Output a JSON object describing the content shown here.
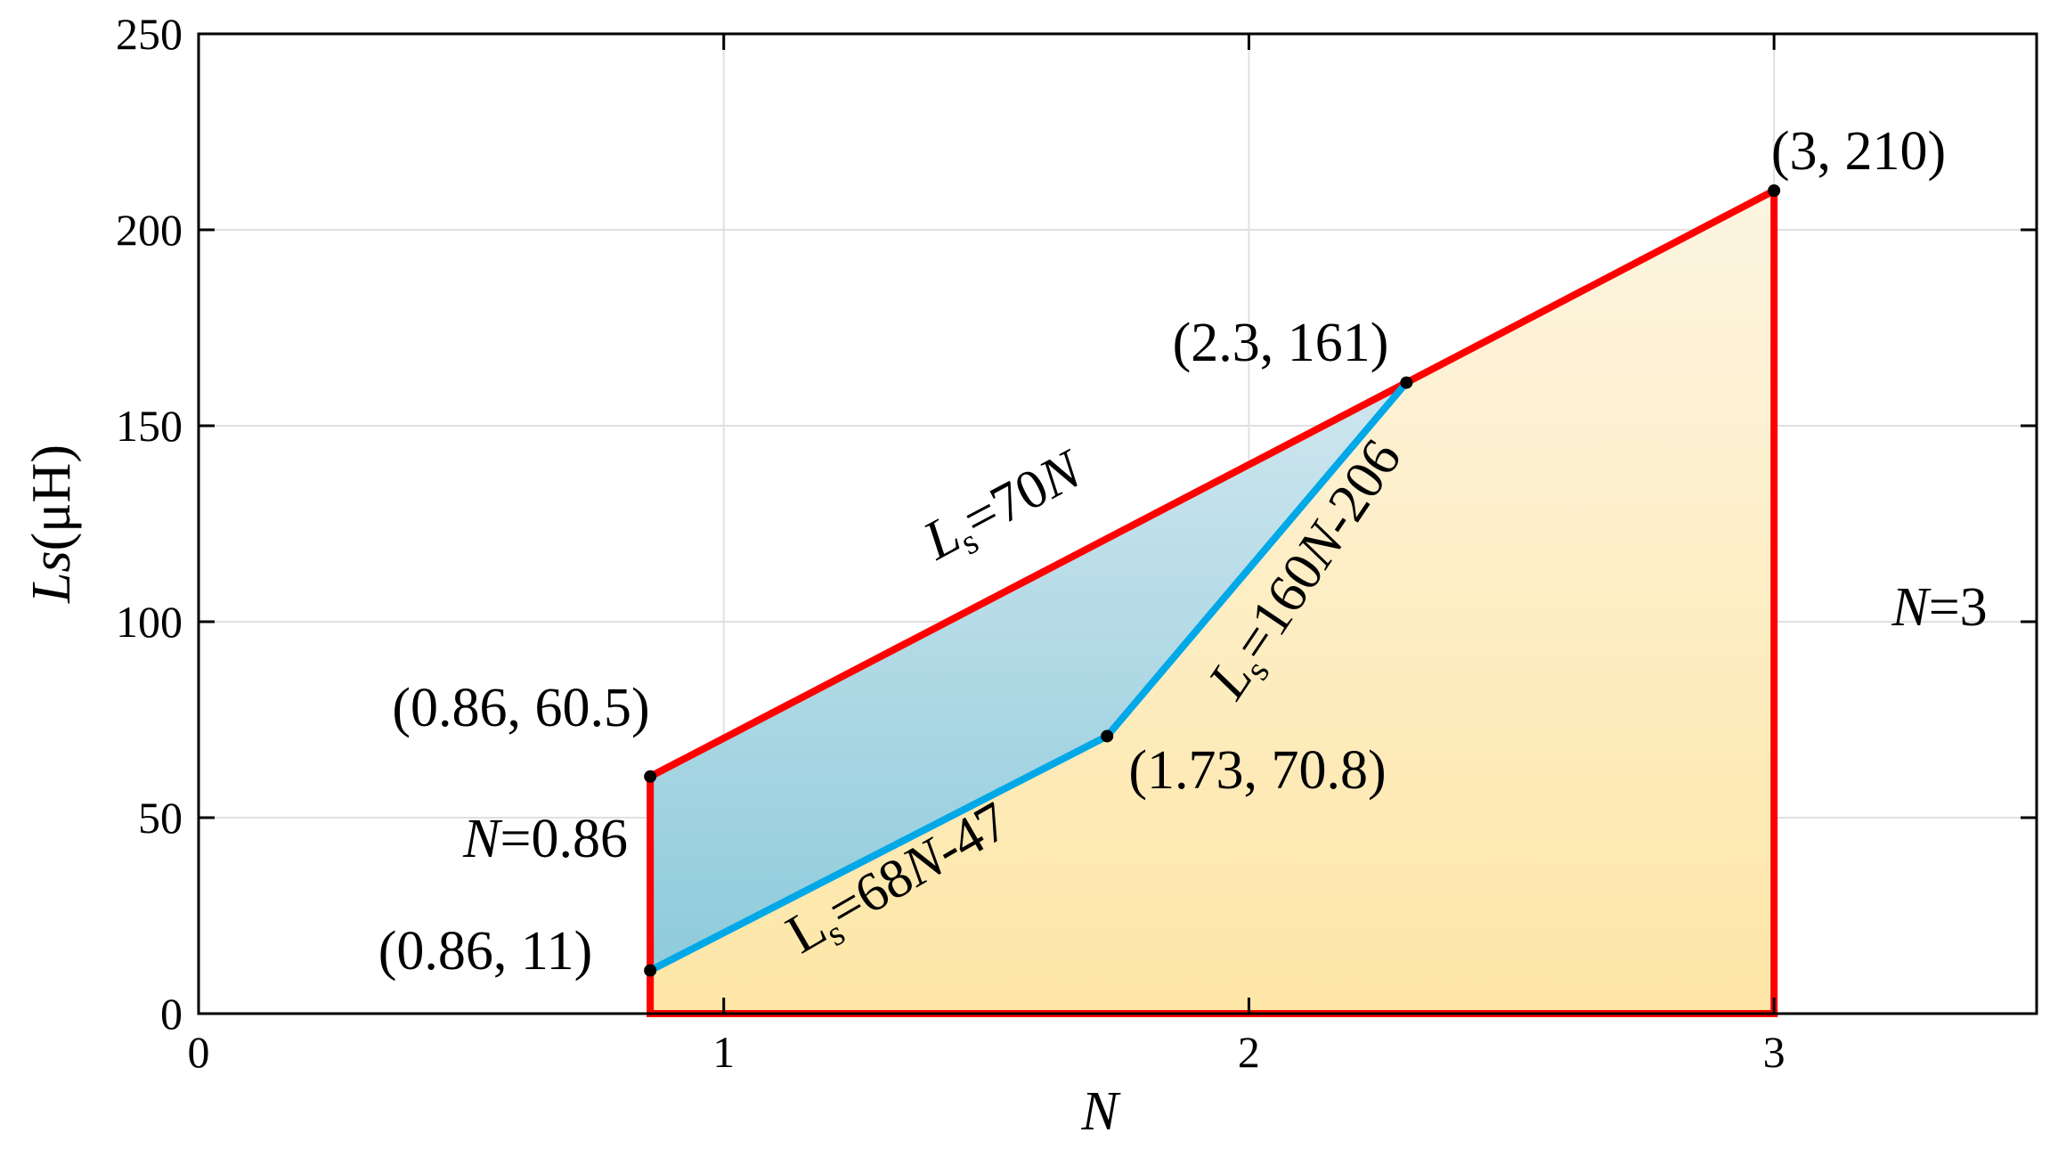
{
  "chart_data": {
    "type": "area",
    "title": "",
    "xlabel": "N",
    "ylabel_italic": "Ls",
    "ylabel_rest": "(μH)",
    "xlim": [
      0,
      3.5
    ],
    "ylim": [
      0,
      250
    ],
    "x_ticks": [
      0,
      1,
      2,
      3
    ],
    "y_ticks": [
      0,
      50,
      100,
      150,
      200,
      250
    ],
    "x_tick_labels": [
      "0",
      "1",
      "2",
      "3"
    ],
    "y_tick_labels": [
      "0",
      "50",
      "100",
      "150",
      "200",
      "250"
    ],
    "grid": true,
    "colors": {
      "boundary": "#ff0000",
      "inner_curve": "#00a8e8",
      "feasible_fill_top": "#fdf5e2",
      "feasible_fill_bottom": "#fde6a6",
      "optimal_fill_top": "#cfe6ee",
      "optimal_fill_bottom": "#8ecbdb"
    },
    "regions": [
      {
        "id": "outer",
        "points": [
          [
            0.86,
            0
          ],
          [
            0.86,
            60.5
          ],
          [
            2.3,
            161
          ],
          [
            3,
            210
          ],
          [
            3,
            0
          ]
        ]
      },
      {
        "id": "inner",
        "points": [
          [
            0.86,
            11
          ],
          [
            0.86,
            60.5
          ],
          [
            2.3,
            161
          ],
          [
            1.73,
            70.8
          ]
        ]
      }
    ],
    "series": [
      {
        "id": "upper-line",
        "color": "#ff0000",
        "points": [
          [
            0.86,
            60.5
          ],
          [
            2.3,
            161
          ],
          [
            3,
            210
          ]
        ]
      },
      {
        "id": "left-line",
        "color": "#ff0000",
        "points": [
          [
            0.86,
            0
          ],
          [
            0.86,
            60.5
          ]
        ]
      },
      {
        "id": "right-line",
        "color": "#ff0000",
        "points": [
          [
            3,
            0
          ],
          [
            3,
            210
          ]
        ]
      },
      {
        "id": "bottom-line",
        "color": "#ff0000",
        "points": [
          [
            0.86,
            0
          ],
          [
            3,
            0
          ]
        ]
      },
      {
        "id": "lower-blue-line",
        "color": "#00a8e8",
        "points": [
          [
            0.86,
            11
          ],
          [
            1.73,
            70.8
          ]
        ]
      },
      {
        "id": "upper-blue-line",
        "color": "#00a8e8",
        "points": [
          [
            1.73,
            70.8
          ],
          [
            2.3,
            161
          ]
        ]
      }
    ],
    "points": [
      {
        "x": 0.86,
        "y": 60.5,
        "label": "(0.86, 60.5)"
      },
      {
        "x": 0.86,
        "y": 11,
        "label": "(0.86, 11)"
      },
      {
        "x": 1.73,
        "y": 70.8,
        "label": "(1.73, 70.8)"
      },
      {
        "x": 2.3,
        "y": 161,
        "label": "(2.3, 161)"
      },
      {
        "x": 3,
        "y": 210,
        "label": "(3, 210)"
      }
    ],
    "annotations": {
      "eq_upper": {
        "italic": "L",
        "sub": "s",
        "rest_pre": "=70",
        "rest_italic": "N",
        "rest_post": ""
      },
      "eq_lower": {
        "italic": "",
        "plain": "L",
        "sub": "s",
        "rest_pre": "=68",
        "rest_italic": "N",
        "rest_post": "-47"
      },
      "eq_steep": {
        "italic": "L",
        "sub": "s",
        "rest_pre": "=160",
        "rest_italic": "N",
        "rest_post": "-206"
      },
      "n_left": {
        "italic": "N",
        "rest": "=0.86"
      },
      "n_right": {
        "italic": "N",
        "rest": "=3"
      }
    }
  }
}
